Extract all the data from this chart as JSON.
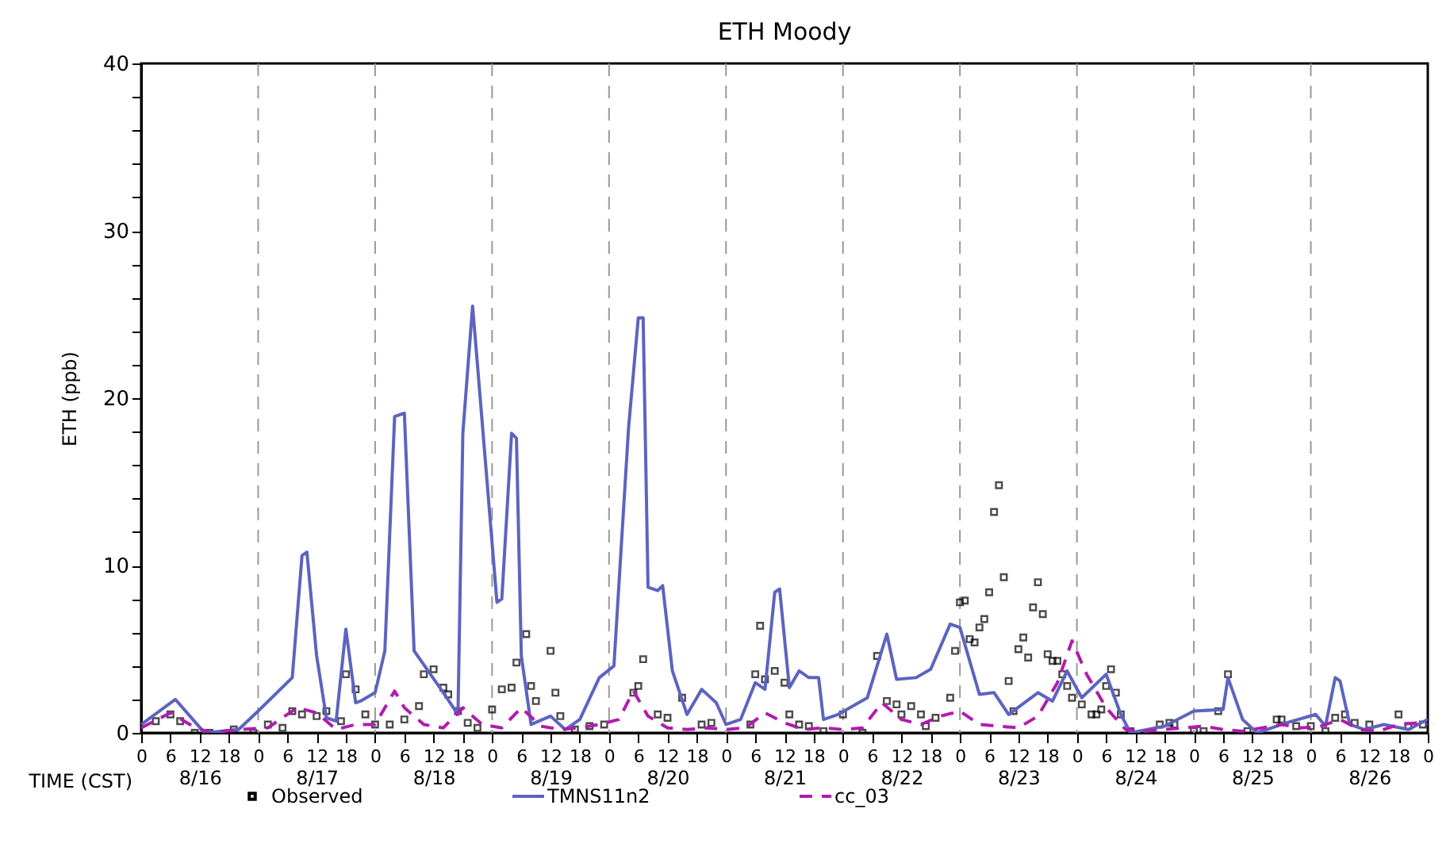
{
  "chart_data": {
    "type": "line",
    "title": "ETH Moody",
    "xlabel": "TIME (CST)",
    "ylabel": "ETH (ppb)",
    "xlim": [
      "--08-16T00:00",
      "--08-27T00:00"
    ],
    "ylim": [
      0,
      40
    ],
    "xticks": [
      {
        "value": "--08-16T00:00",
        "label": "0"
      },
      {
        "value": "--08-16T06:00",
        "label": "6"
      },
      {
        "value": "--08-16T12:00",
        "label": "12"
      },
      {
        "value": "--08-16T18:00",
        "label": "18"
      },
      {
        "value": "--08-17T00:00",
        "label": "0"
      },
      {
        "value": "--08-17T06:00",
        "label": "6"
      },
      {
        "value": "--08-17T12:00",
        "label": "12"
      },
      {
        "value": "--08-17T18:00",
        "label": "18"
      },
      {
        "value": "--08-18T00:00",
        "label": "0"
      },
      {
        "value": "--08-18T06:00",
        "label": "6"
      },
      {
        "value": "--08-18T12:00",
        "label": "12"
      },
      {
        "value": "--08-18T18:00",
        "label": "18"
      },
      {
        "value": "--08-19T00:00",
        "label": "0"
      },
      {
        "value": "--08-19T06:00",
        "label": "6"
      },
      {
        "value": "--08-19T12:00",
        "label": "12"
      },
      {
        "value": "--08-19T18:00",
        "label": "18"
      },
      {
        "value": "--08-20T00:00",
        "label": "0"
      },
      {
        "value": "--08-20T06:00",
        "label": "6"
      },
      {
        "value": "--08-20T12:00",
        "label": "12"
      },
      {
        "value": "--08-20T18:00",
        "label": "18"
      },
      {
        "value": "--08-21T00:00",
        "label": "0"
      },
      {
        "value": "--08-21T06:00",
        "label": "6"
      },
      {
        "value": "--08-21T12:00",
        "label": "12"
      },
      {
        "value": "--08-21T18:00",
        "label": "18"
      },
      {
        "value": "--08-22T00:00",
        "label": "0"
      },
      {
        "value": "--08-22T06:00",
        "label": "6"
      },
      {
        "value": "--08-22T12:00",
        "label": "12"
      },
      {
        "value": "--08-22T18:00",
        "label": "18"
      },
      {
        "value": "--08-23T00:00",
        "label": "0"
      },
      {
        "value": "--08-23T06:00",
        "label": "6"
      },
      {
        "value": "--08-23T12:00",
        "label": "12"
      },
      {
        "value": "--08-23T18:00",
        "label": "18"
      },
      {
        "value": "--08-24T00:00",
        "label": "0"
      },
      {
        "value": "--08-24T06:00",
        "label": "6"
      },
      {
        "value": "--08-24T12:00",
        "label": "12"
      },
      {
        "value": "--08-24T18:00",
        "label": "18"
      },
      {
        "value": "--08-25T00:00",
        "label": "0"
      },
      {
        "value": "--08-25T06:00",
        "label": "6"
      },
      {
        "value": "--08-25T12:00",
        "label": "12"
      },
      {
        "value": "--08-25T18:00",
        "label": "18"
      },
      {
        "value": "--08-26T00:00",
        "label": "0"
      },
      {
        "value": "--08-26T06:00",
        "label": "6"
      },
      {
        "value": "--08-26T12:00",
        "label": "12"
      },
      {
        "value": "--08-26T18:00",
        "label": "18"
      },
      {
        "value": "--08-27T00:00",
        "label": "0"
      }
    ],
    "x2lim": [
      "--08-16T00:00",
      "--08-27T00:00"
    ],
    "x2ticks": [
      {
        "value": "--08-16T12:00",
        "label": "8/16"
      },
      {
        "value": "--08-17T12:00",
        "label": "8/17"
      },
      {
        "value": "--08-18T12:00",
        "label": "8/18"
      },
      {
        "value": "--08-19T12:00",
        "label": "8/19"
      },
      {
        "value": "--08-20T12:00",
        "label": "8/20"
      },
      {
        "value": "--08-21T12:00",
        "label": "8/21"
      },
      {
        "value": "--08-22T12:00",
        "label": "8/22"
      },
      {
        "value": "--08-23T12:00",
        "label": "8/23"
      },
      {
        "value": "--08-24T12:00",
        "label": "8/24"
      },
      {
        "value": "--08-25T12:00",
        "label": "8/25"
      },
      {
        "value": "--08-26T12:00",
        "label": "8/26"
      }
    ],
    "yticks": [
      0,
      {
        "value": 2,
        "label": null
      },
      {
        "value": 4,
        "label": null
      },
      {
        "value": 6,
        "label": null
      },
      {
        "value": 8,
        "label": null
      },
      10,
      {
        "value": 12,
        "label": null
      },
      {
        "value": 14,
        "label": null
      },
      {
        "value": 16,
        "label": null
      },
      {
        "value": 18,
        "label": null
      },
      20,
      {
        "value": 22,
        "label": null
      },
      {
        "value": 24,
        "label": null
      },
      {
        "value": 26,
        "label": null
      },
      {
        "value": 28,
        "label": null
      },
      30,
      {
        "value": 32,
        "label": null
      },
      {
        "value": 34,
        "label": null
      },
      {
        "value": 36,
        "label": null
      },
      {
        "value": 38,
        "label": null
      },
      40
    ],
    "grid": false,
    "legend": "bottom",
    "ref_lines": [
      {
        "axis": "x",
        "value": "--08-17T00:00",
        "color": "#999999",
        "line_style": "dashed"
      },
      {
        "axis": "x",
        "value": "--08-18T00:00",
        "color": "#999999",
        "line_style": "dashed"
      },
      {
        "axis": "x",
        "value": "--08-19T00:00",
        "color": "#999999",
        "line_style": "dashed"
      },
      {
        "axis": "x",
        "value": "--08-20T00:00",
        "color": "#999999",
        "line_style": "dashed"
      },
      {
        "axis": "x",
        "value": "--08-21T00:00",
        "color": "#999999",
        "line_style": "dashed"
      },
      {
        "axis": "x",
        "value": "--08-22T00:00",
        "color": "#999999",
        "line_style": "dashed"
      },
      {
        "axis": "x",
        "value": "--08-23T00:00",
        "color": "#999999",
        "line_style": "dashed"
      },
      {
        "axis": "x",
        "value": "--08-24T00:00",
        "color": "#999999",
        "line_style": "dashed"
      },
      {
        "axis": "x",
        "value": "--08-25T00:00",
        "color": "#999999",
        "line_style": "dashed"
      },
      {
        "axis": "x",
        "value": "--08-26T00:00",
        "color": "#999999",
        "line_style": "dashed"
      }
    ],
    "series": [
      {
        "name": "Observed",
        "type": "scatter",
        "marker": "square",
        "color": "#000000",
        "x": [
          "--08-16T03:00",
          "--08-16T06:00",
          "--08-16T08:00",
          "--08-16T11:00",
          "--08-16T14:00",
          "--08-16T19:00",
          "--08-16T23:00",
          "--08-17T02:00",
          "--08-17T05:00",
          "--08-17T07:00",
          "--08-17T09:00",
          "--08-17T12:00",
          "--08-17T14:00",
          "--08-17T17:00",
          "--08-17T18:00",
          "--08-17T20:00",
          "--08-17T22:00",
          "--08-18T00:00",
          "--08-18T03:00",
          "--08-18T06:00",
          "--08-18T09:00",
          "--08-18T10:00",
          "--08-18T12:00",
          "--08-18T14:00",
          "--08-18T15:00",
          "--08-18T17:00",
          "--08-18T19:00",
          "--08-18T21:00",
          "--08-19T00:00",
          "--08-19T02:00",
          "--08-19T04:00",
          "--08-19T05:00",
          "--08-19T07:00",
          "--08-19T08:00",
          "--08-19T09:00",
          "--08-19T12:00",
          "--08-19T13:00",
          "--08-19T14:00",
          "--08-19T17:00",
          "--08-19T20:00",
          "--08-19T23:00",
          "--08-20T05:00",
          "--08-20T06:00",
          "--08-20T07:00",
          "--08-20T10:00",
          "--08-20T12:00",
          "--08-20T15:00",
          "--08-20T19:00",
          "--08-20T21:00",
          "--08-21T05:00",
          "--08-21T06:00",
          "--08-21T07:00",
          "--08-21T08:00",
          "--08-21T10:00",
          "--08-21T12:00",
          "--08-21T13:00",
          "--08-21T15:00",
          "--08-21T17:00",
          "--08-21T20:00",
          "--08-22T00:00",
          "--08-22T04:00",
          "--08-22T07:00",
          "--08-22T09:00",
          "--08-22T11:00",
          "--08-22T12:00",
          "--08-22T14:00",
          "--08-22T16:00",
          "--08-22T17:00",
          "--08-22T19:00",
          "--08-22T22:00",
          "--08-22T23:00",
          "--08-23T00:00",
          "--08-23T01:00",
          "--08-23T02:00",
          "--08-23T03:00",
          "--08-23T04:00",
          "--08-23T05:00",
          "--08-23T06:00",
          "--08-23T07:00",
          "--08-23T08:00",
          "--08-23T09:00",
          "--08-23T10:00",
          "--08-23T11:00",
          "--08-23T12:00",
          "--08-23T13:00",
          "--08-23T14:00",
          "--08-23T15:00",
          "--08-23T16:00",
          "--08-23T17:00",
          "--08-23T18:00",
          "--08-23T19:00",
          "--08-23T20:00",
          "--08-23T21:00",
          "--08-23T22:00",
          "--08-23T23:00",
          "--08-24T01:00",
          "--08-24T03:00",
          "--08-24T04:00",
          "--08-24T05:00",
          "--08-24T06:00",
          "--08-24T07:00",
          "--08-24T08:00",
          "--08-24T09:00",
          "--08-24T11:00",
          "--08-24T17:00",
          "--08-24T19:00",
          "--08-24T20:00",
          "--08-25T00:00",
          "--08-25T02:00",
          "--08-25T05:00",
          "--08-25T07:00",
          "--08-25T11:00",
          "--08-25T17:00",
          "--08-25T18:00",
          "--08-25T21:00",
          "--08-26T00:00",
          "--08-26T03:00",
          "--08-26T05:00",
          "--08-26T07:00",
          "--08-26T09:00",
          "--08-26T12:00",
          "--08-26T18:00",
          "--08-26T20:00",
          "--08-26T23:00"
        ],
        "values": [
          0.7,
          1.1,
          0.7,
          0,
          0,
          0.2,
          0,
          0.5,
          0.3,
          1.3,
          1.1,
          1.0,
          1.3,
          0.7,
          3.5,
          2.6,
          1.1,
          0.5,
          0.5,
          0.8,
          1.6,
          3.5,
          3.8,
          2.7,
          2.3,
          1.3,
          0.6,
          0.3,
          1.4,
          2.6,
          2.7,
          4.2,
          5.9,
          2.8,
          1.9,
          4.9,
          2.4,
          1.0,
          0.2,
          0.4,
          0.5,
          2.4,
          2.8,
          4.4,
          1.1,
          0.9,
          2.1,
          0.5,
          0.6,
          0.5,
          3.5,
          6.4,
          3.2,
          3.7,
          3.0,
          1.1,
          0.5,
          0.4,
          0.1,
          1.1,
          0,
          4.6,
          1.9,
          1.7,
          1.1,
          1.6,
          1.1,
          0.4,
          0.9,
          2.1,
          4.9,
          7.8,
          7.9,
          5.6,
          5.4,
          6.3,
          6.8,
          8.4,
          13.2,
          14.8,
          9.3,
          3.1,
          1.3,
          5.0,
          5.7,
          4.5,
          7.5,
          9.0,
          7.1,
          4.7,
          4.3,
          4.3,
          3.5,
          2.8,
          2.1,
          1.7,
          1.1,
          1.1,
          1.4,
          2.8,
          3.8,
          2.4,
          1.1,
          0.1,
          0.5,
          0.6,
          0.5,
          0.1,
          0.1,
          1.3,
          3.5,
          0.1,
          0.8,
          0.8,
          0.4,
          0.4,
          0.1,
          0.9,
          1.1,
          0.6,
          0.5,
          1.1,
          0.4,
          0.5
        ]
      },
      {
        "name": "TMNS11n2",
        "color": "#5c64bf",
        "x": [
          "--08-16T00:00",
          "--08-16T07:00",
          "--08-16T10:00",
          "--08-16T13:00",
          "--08-16T20:00",
          "--08-17T00:00",
          "--08-17T07:00",
          "--08-17T09:00",
          "--08-17T10:00",
          "--08-17T12:00",
          "--08-17T14:00",
          "--08-17T16:00",
          "--08-17T18:00",
          "--08-17T20:00",
          "--08-17T21:00",
          "--08-18T00:00",
          "--08-18T02:00",
          "--08-18T04:00",
          "--08-18T06:00",
          "--08-18T08:00",
          "--08-18T14:00",
          "--08-18T17:00",
          "--08-18T18:00",
          "--08-18T20:00",
          "--08-18T21:00",
          "--08-19T01:00",
          "--08-19T02:00",
          "--08-19T04:00",
          "--08-19T05:00",
          "--08-19T06:00",
          "--08-19T08:00",
          "--08-19T12:00",
          "--08-19T15:00",
          "--08-19T18:00",
          "--08-19T22:00",
          "--08-20T01:00",
          "--08-20T04:00",
          "--08-20T06:00",
          "--08-20T07:00",
          "--08-20T08:00",
          "--08-20T10:00",
          "--08-20T11:00",
          "--08-20T13:00",
          "--08-20T16:00",
          "--08-20T19:00",
          "--08-20T22:00",
          "--08-21T00:00",
          "--08-21T03:00",
          "--08-21T06:00",
          "--08-21T08:00",
          "--08-21T10:00",
          "--08-21T11:00",
          "--08-21T13:00",
          "--08-21T15:00",
          "--08-21T17:00",
          "--08-21T19:00",
          "--08-21T20:00",
          "--08-21T23:00",
          "--08-22T05:00",
          "--08-22T09:00",
          "--08-22T11:00",
          "--08-22T15:00",
          "--08-22T18:00",
          "--08-22T22:00",
          "--08-23T00:00",
          "--08-23T04:00",
          "--08-23T07:00",
          "--08-23T10:00",
          "--08-23T16:00",
          "--08-23T19:00",
          "--08-23T22:00",
          "--08-24T01:00",
          "--08-24T06:00",
          "--08-24T09:00",
          "--08-24T11:00",
          "--08-24T18:00",
          "--08-25T00:00",
          "--08-25T06:00",
          "--08-25T07:00",
          "--08-25T10:00",
          "--08-25T13:00",
          "--08-25T19:00",
          "--08-26T01:00",
          "--08-26T03:00",
          "--08-26T05:00",
          "--08-26T06:00",
          "--08-26T08:00",
          "--08-26T11:00",
          "--08-26T15:00",
          "--08-26T20:00",
          "--08-27T00:00"
        ],
        "values": [
          0.5,
          2.0,
          1.0,
          0,
          0.2,
          1.3,
          3.3,
          10.6,
          10.8,
          4.6,
          0.9,
          0.7,
          6.2,
          1.8,
          1.9,
          2.4,
          4.9,
          18.9,
          19.1,
          4.9,
          2.4,
          1.1,
          17.9,
          25.5,
          22,
          7.8,
          8.0,
          17.9,
          17.6,
          4.6,
          0.5,
          1.0,
          0.2,
          0.8,
          3.3,
          4.0,
          18.2,
          24.8,
          24.8,
          8.7,
          8.5,
          8.8,
          3.7,
          1.1,
          2.6,
          1.8,
          0.5,
          0.8,
          3.0,
          2.6,
          8.4,
          8.6,
          2.7,
          3.7,
          3.3,
          3.3,
          0.8,
          1.1,
          2.1,
          5.9,
          3.2,
          3.3,
          3.8,
          6.5,
          6.3,
          2.3,
          2.4,
          1.1,
          2.4,
          1.9,
          3.7,
          2.1,
          3.5,
          1.1,
          0,
          0.4,
          1.3,
          1.4,
          3.3,
          0.8,
          0,
          0.6,
          1.1,
          0.4,
          3.3,
          3.1,
          0.5,
          0.2,
          0.5,
          0.2,
          0.8
        ]
      },
      {
        "name": "cc_03",
        "line_style": "dashed",
        "color": "#b01cb0",
        "x": [
          "--08-16T00:00",
          "--08-16T06:00",
          "--08-16T10:00",
          "--08-16T14:00",
          "--08-16T20:00",
          "--08-17T02:00",
          "--08-17T08:00",
          "--08-17T12:00",
          "--08-17T16:00",
          "--08-17T20:00",
          "--08-18T00:00",
          "--08-18T04:00",
          "--08-18T06:00",
          "--08-18T10:00",
          "--08-18T14:00",
          "--08-18T18:00",
          "--08-18T22:00",
          "--08-19T02:00",
          "--08-19T06:00",
          "--08-19T10:00",
          "--08-19T14:00",
          "--08-19T18:00",
          "--08-19T22:00",
          "--08-20T02:00",
          "--08-20T05:00",
          "--08-20T08:00",
          "--08-20T12:00",
          "--08-20T16:00",
          "--08-20T20:00",
          "--08-21T00:00",
          "--08-21T04:00",
          "--08-21T08:00",
          "--08-21T12:00",
          "--08-21T16:00",
          "--08-21T20:00",
          "--08-22T00:00",
          "--08-22T04:00",
          "--08-22T08:00",
          "--08-22T12:00",
          "--08-22T16:00",
          "--08-22T20:00",
          "--08-23T00:00",
          "--08-23T04:00",
          "--08-23T08:00",
          "--08-23T12:00",
          "--08-23T16:00",
          "--08-23T20:00",
          "--08-23T23:00",
          "--08-24T02:00",
          "--08-24T06:00",
          "--08-24T10:00",
          "--08-24T14:00",
          "--08-24T18:00",
          "--08-24T22:00",
          "--08-25T02:00",
          "--08-25T06:00",
          "--08-25T10:00",
          "--08-25T14:00",
          "--08-25T18:00",
          "--08-25T22:00",
          "--08-26T02:00",
          "--08-26T06:00",
          "--08-26T10:00",
          "--08-26T14:00",
          "--08-26T18:00",
          "--08-26T22:00",
          "--08-27T00:00"
        ],
        "values": [
          0.3,
          1.2,
          0.5,
          0,
          0.2,
          0.3,
          1.5,
          1.2,
          0.2,
          0.5,
          0.5,
          2.5,
          1.5,
          0.5,
          0.3,
          1.5,
          0.5,
          0.3,
          1.5,
          0.4,
          0.2,
          0.3,
          0.5,
          0.8,
          2.5,
          1.0,
          0.3,
          0.2,
          0.3,
          0.2,
          0.3,
          1.2,
          0.6,
          0.2,
          0.3,
          0.2,
          0.3,
          1.8,
          0.8,
          0.5,
          1.0,
          1.3,
          0.5,
          0.4,
          0.3,
          1.0,
          3.0,
          5.5,
          3.5,
          1.5,
          0.2,
          0.1,
          0.2,
          0.3,
          0.4,
          0.2,
          0.1,
          0.3,
          0.5,
          0.3,
          0.4,
          0.8,
          0.2,
          0.1,
          0.5,
          0.6,
          0.5
        ]
      }
    ]
  }
}
